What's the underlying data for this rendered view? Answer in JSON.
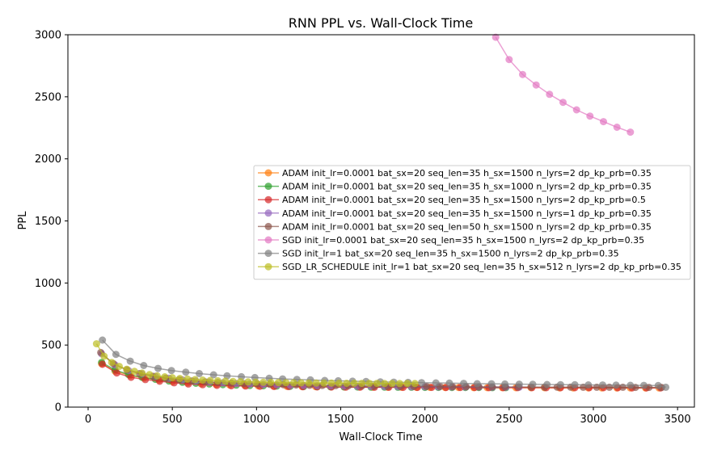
{
  "chart_data": {
    "type": "line",
    "title": "RNN PPL vs. Wall-Clock Time",
    "xlabel": "Wall-Clock Time",
    "ylabel": "PPL",
    "xlim": [
      -120,
      3600
    ],
    "ylim": [
      0,
      3000
    ],
    "xticks": [
      0,
      500,
      1000,
      1500,
      2000,
      2500,
      3000,
      3500
    ],
    "yticks": [
      0,
      500,
      1000,
      1500,
      2000,
      2500,
      3000
    ],
    "grid": false,
    "legend_position": "center-right",
    "series": [
      {
        "name": "ADAM init_lr=0.0001 bat_sx=20 seq_len=35 h_sx=1500 n_lyrs=2 dp_kp_prb=0.35",
        "color": "#ff7f0e",
        "x": [
          80,
          160,
          250,
          330,
          420,
          500,
          590,
          670,
          760,
          840,
          930,
          1010,
          1100,
          1180,
          1270,
          1350,
          1440,
          1520,
          1610,
          1690,
          1780,
          1860,
          1950,
          2030,
          2120,
          2200,
          2290,
          2370,
          2460,
          2540,
          2630,
          2710,
          2800,
          2880,
          2970,
          3050,
          3140,
          3220,
          3310,
          3390
        ],
        "y": [
          350,
          290,
          255,
          235,
          220,
          205,
          195,
          188,
          182,
          178,
          175,
          172,
          170,
          168,
          166,
          165,
          164,
          163,
          162,
          161,
          160,
          160,
          159,
          159,
          158,
          158,
          157,
          157,
          157,
          156,
          156,
          156,
          155,
          155,
          155,
          155,
          154,
          154,
          154,
          154
        ]
      },
      {
        "name": "ADAM init_lr=0.0001 bat_sx=20 seq_len=35 h_sx=1000 n_lyrs=2 dp_kp_prb=0.35",
        "color": "#2ca02c",
        "x": [
          80,
          160,
          240,
          320,
          400,
          480,
          560,
          640,
          720,
          800,
          880,
          960,
          1040,
          1120,
          1200,
          1280,
          1360,
          1440,
          1520,
          1600,
          1680,
          1760,
          1840,
          1920,
          2000,
          2080,
          2160,
          2240,
          2320,
          2400,
          2480
        ],
        "y": [
          360,
          300,
          262,
          240,
          224,
          210,
          200,
          192,
          186,
          181,
          177,
          174,
          172,
          170,
          168,
          166,
          165,
          164,
          163,
          162,
          161,
          161,
          160,
          160,
          159,
          159,
          158,
          158,
          158,
          157,
          157
        ]
      },
      {
        "name": "ADAM init_lr=0.0001 bat_sx=20 seq_len=35 h_sx=1500 n_lyrs=2 dp_kp_prb=0.5",
        "color": "#d62728",
        "x": [
          85,
          170,
          255,
          340,
          425,
          510,
          595,
          680,
          765,
          850,
          935,
          1020,
          1105,
          1190,
          1275,
          1360,
          1445,
          1530,
          1615,
          1700,
          1785,
          1870,
          1955,
          2040,
          2125,
          2210,
          2295,
          2380,
          2465,
          2550,
          2635,
          2720,
          2805,
          2890,
          2975,
          3060,
          3145,
          3230,
          3315,
          3400
        ],
        "y": [
          345,
          275,
          240,
          222,
          208,
          196,
          186,
          180,
          175,
          172,
          170,
          168,
          166,
          165,
          164,
          163,
          162,
          161,
          161,
          160,
          160,
          159,
          159,
          159,
          158,
          158,
          158,
          157,
          157,
          157,
          157,
          156,
          156,
          156,
          156,
          156,
          156,
          155,
          155,
          155
        ]
      },
      {
        "name": "ADAM init_lr=0.0001 bat_sx=20 seq_len=35 h_sx=1500 n_lyrs=1 dp_kp_prb=0.35",
        "color": "#9467bd",
        "x": [
          80,
          160,
          240,
          320,
          400,
          480,
          560,
          640,
          720,
          800,
          880,
          960,
          1040,
          1120,
          1200,
          1280,
          1360,
          1440,
          1520,
          1600,
          1680,
          1760,
          1840,
          1920,
          2000,
          2080,
          2160,
          2240,
          2320,
          2400,
          2480,
          2560
        ],
        "y": [
          430,
          340,
          295,
          268,
          248,
          232,
          220,
          210,
          202,
          196,
          190,
          186,
          182,
          179,
          176,
          174,
          172,
          170,
          169,
          168,
          167,
          166,
          165,
          164,
          164,
          163,
          163,
          162,
          162,
          161,
          161,
          161
        ]
      },
      {
        "name": "ADAM init_lr=0.0001 bat_sx=20 seq_len=50 h_sx=1500 n_lyrs=2 dp_kp_prb=0.35",
        "color": "#8c564b",
        "x": [
          75,
          150,
          230,
          305,
          385,
          460,
          540,
          615,
          695,
          770,
          850,
          925,
          1005,
          1080,
          1160,
          1235,
          1315,
          1390,
          1470,
          1545,
          1625,
          1700,
          1780,
          1855,
          1935,
          2010,
          2090,
          2165,
          2245,
          2320,
          2400,
          2475,
          2555,
          2630,
          2710,
          2785,
          2865,
          2940,
          3020,
          3095,
          3175,
          3250,
          3330,
          3405
        ],
        "y": [
          440,
          350,
          300,
          270,
          248,
          232,
          220,
          211,
          204,
          198,
          193,
          189,
          186,
          183,
          180,
          178,
          176,
          174,
          173,
          171,
          170,
          169,
          168,
          167,
          166,
          166,
          165,
          164,
          164,
          163,
          163,
          162,
          162,
          162,
          161,
          161,
          161,
          160,
          160,
          160,
          160,
          159,
          159,
          159
        ]
      },
      {
        "name": "SGD init_lr=0.0001 bat_sx=20 seq_len=35 h_sx=1500 n_lyrs=2 dp_kp_prb=0.35",
        "color": "#e377c2",
        "x": [
          2420,
          2500,
          2580,
          2660,
          2740,
          2820,
          2900,
          2980,
          3060,
          3140,
          3220
        ],
        "y": [
          2980,
          2800,
          2680,
          2595,
          2520,
          2455,
          2395,
          2345,
          2300,
          2255,
          2215
        ]
      },
      {
        "name": "SGD init_lr=1 bat_sx=20 seq_len=35 h_sx=1500 n_lyrs=2 dp_kp_prb=0.35",
        "color": "#7f7f7f",
        "x": [
          85,
          165,
          250,
          330,
          415,
          495,
          580,
          660,
          745,
          825,
          910,
          990,
          1075,
          1155,
          1240,
          1320,
          1405,
          1485,
          1570,
          1650,
          1735,
          1815,
          1900,
          1980,
          2065,
          2145,
          2230,
          2310,
          2395,
          2475,
          2560,
          2640,
          2725,
          2805,
          2890,
          2970,
          3055,
          3135,
          3220,
          3300,
          3385,
          3430
        ],
        "y": [
          540,
          425,
          370,
          335,
          312,
          295,
          282,
          270,
          260,
          252,
          245,
          238,
          232,
          227,
          223,
          219,
          215,
          212,
          209,
          206,
          203,
          201,
          199,
          197,
          195,
          193,
          191,
          189,
          188,
          186,
          185,
          184,
          182,
          181,
          180,
          179,
          178,
          177,
          176,
          175,
          174,
          160
        ]
      },
      {
        "name": "SGD_LR_SCHEDULE init_lr=1 bat_sx=20 seq_len=35 h_sx=512 n_lyrs=2 dp_kp_prb=0.35",
        "color": "#bcbd22",
        "x": [
          50,
          95,
          140,
          185,
          230,
          275,
          320,
          365,
          410,
          455,
          500,
          545,
          590,
          635,
          680,
          725,
          770,
          815,
          860,
          905,
          950,
          995,
          1040,
          1085,
          1130,
          1175,
          1220,
          1265,
          1310,
          1355,
          1400,
          1445,
          1490,
          1535,
          1580,
          1625,
          1670,
          1715,
          1760,
          1805,
          1850,
          1895,
          1940
        ],
        "y": [
          510,
          410,
          360,
          328,
          305,
          288,
          274,
          262,
          252,
          244,
          237,
          231,
          226,
          222,
          218,
          215,
          212,
          209,
          207,
          205,
          203,
          201,
          200,
          199,
          198,
          197,
          196,
          195,
          194,
          194,
          193,
          193,
          192,
          192,
          192,
          191,
          191,
          191,
          190,
          190,
          190,
          190,
          190
        ]
      }
    ]
  }
}
